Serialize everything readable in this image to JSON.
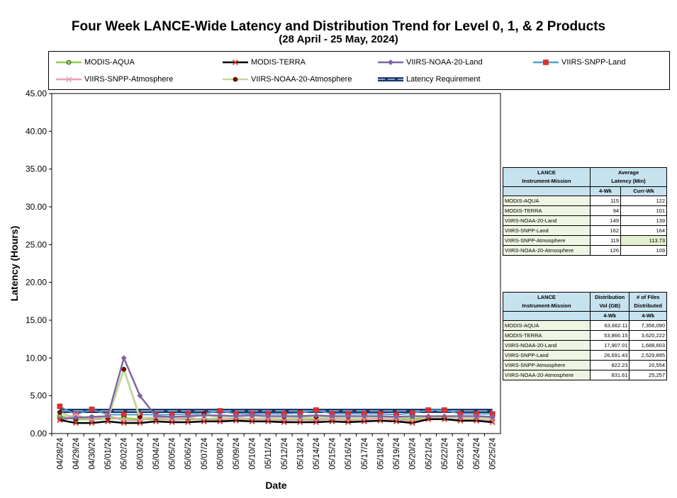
{
  "title": "Four Week LANCE-Wide Latency and Distribution Trend for Level 0, 1, & 2 Products",
  "subtitle": "(28  April   -  25  May,  2024)",
  "colors": {
    "modis_aqua": "#92d050",
    "modis_terra": "#000000",
    "viirs_noaa20_land": "#8064a2",
    "viirs_snpp_land": "#4f9fd6",
    "viirs_snpp_atmo": "#e6a2b4",
    "viirs_noaa20_atmo": "#c4d79b",
    "requirement": "#1f3864"
  },
  "legend": {
    "items": [
      {
        "label": "MODIS-AQUA",
        "marker": "circle"
      },
      {
        "label": "MODIS-TERRA",
        "marker": "x"
      },
      {
        "label": "VIIRS-NOAA-20-Land",
        "marker": "diamond"
      },
      {
        "label": "VIIRS-SNPP-Land",
        "marker": "square"
      },
      {
        "label": "VIIRS-SNPP-Atmosphere",
        "marker": "x"
      },
      {
        "label": "VIIRS-NOAA-20-Atmosphere",
        "marker": "circle"
      },
      {
        "label": "Latency Requirement",
        "marker": "none"
      }
    ]
  },
  "chart_data": {
    "type": "line",
    "title": "Four Week LANCE-Wide Latency and Distribution Trend for Level 0, 1, & 2 Products",
    "subtitle": "(28  April   -  25  May,  2024)",
    "xlabel": "Date",
    "ylabel": "Latency (Hours)",
    "ylim": [
      0,
      45
    ],
    "yticks": [
      "0.00",
      "5.00",
      "10.00",
      "15.00",
      "20.00",
      "25.00",
      "30.00",
      "35.00",
      "40.00",
      "45.00"
    ],
    "grid": false,
    "legend_position": "top",
    "categories": [
      "04/28/24",
      "04/29/24",
      "04/30/24",
      "05/01/24",
      "05/02/24",
      "05/03/24",
      "05/04/24",
      "05/05/24",
      "05/06/24",
      "05/07/24",
      "05/08/24",
      "05/09/24",
      "05/10/24",
      "05/11/24",
      "05/12/24",
      "05/13/24",
      "05/14/24",
      "05/15/24",
      "05/16/24",
      "05/17/24",
      "05/18/24",
      "05/19/24",
      "05/20/24",
      "05/21/24",
      "05/22/24",
      "05/23/24",
      "05/24/24",
      "05/25/24"
    ],
    "series": [
      {
        "name": "MODIS-AQUA",
        "values": [
          2.3,
          1.9,
          1.9,
          2.0,
          2.0,
          1.9,
          1.9,
          1.9,
          1.9,
          1.9,
          1.9,
          1.9,
          1.9,
          1.9,
          1.9,
          1.9,
          1.9,
          1.9,
          1.9,
          1.9,
          2.0,
          1.9,
          1.9,
          2.0,
          2.0,
          2.0,
          2.0,
          2.0
        ]
      },
      {
        "name": "MODIS-TERRA",
        "values": [
          1.8,
          1.4,
          1.4,
          1.6,
          1.4,
          1.4,
          1.6,
          1.5,
          1.5,
          1.6,
          1.6,
          1.7,
          1.6,
          1.6,
          1.5,
          1.5,
          1.5,
          1.6,
          1.5,
          1.6,
          1.7,
          1.6,
          1.4,
          1.9,
          1.9,
          1.7,
          1.7,
          1.5
        ]
      },
      {
        "name": "VIIRS-NOAA-20-Land",
        "values": [
          1.9,
          2.1,
          2.2,
          2.3,
          10.0,
          5.0,
          2.3,
          2.2,
          2.3,
          2.4,
          2.4,
          2.3,
          2.4,
          2.3,
          2.3,
          2.3,
          2.4,
          2.3,
          2.3,
          2.3,
          2.3,
          2.2,
          2.3,
          2.3,
          2.3,
          2.3,
          2.3,
          2.2
        ]
      },
      {
        "name": "VIIRS-SNPP-Land",
        "values": [
          3.6,
          2.5,
          3.2,
          2.5,
          2.5,
          2.5,
          2.5,
          2.5,
          2.6,
          2.6,
          3.0,
          2.6,
          2.6,
          2.6,
          2.6,
          2.7,
          3.1,
          2.6,
          2.6,
          2.6,
          2.6,
          2.5,
          2.7,
          3.1,
          3.1,
          2.6,
          2.6,
          2.6
        ]
      },
      {
        "name": "VIIRS-SNPP-Atmosphere",
        "values": [
          1.8,
          2.5,
          1.8,
          2.4,
          1.7,
          1.7,
          2.2,
          1.7,
          2.1,
          1.8,
          1.8,
          2.0,
          1.9,
          1.8,
          1.7,
          1.8,
          1.7,
          2.0,
          1.7,
          1.8,
          2.0,
          1.8,
          1.6,
          2.0,
          1.9,
          1.8,
          1.8,
          1.7
        ]
      },
      {
        "name": "VIIRS-NOAA-20-Atmosphere",
        "values": [
          2.8,
          2.0,
          2.2,
          2.0,
          8.5,
          2.1,
          2.1,
          2.0,
          2.1,
          2.6,
          2.1,
          2.0,
          2.0,
          2.0,
          2.0,
          2.1,
          2.1,
          2.1,
          2.0,
          2.0,
          2.1,
          2.0,
          2.3,
          2.1,
          2.1,
          2.0,
          2.0,
          2.0
        ]
      },
      {
        "name": "Latency Requirement",
        "values": [
          3,
          3,
          3,
          3,
          3,
          3,
          3,
          3,
          3,
          3,
          3,
          3,
          3,
          3,
          3,
          3,
          3,
          3,
          3,
          3,
          3,
          3,
          3,
          3,
          3,
          3,
          3,
          3
        ]
      }
    ]
  },
  "latency_table": {
    "h1": "LANCE Instrument-Mission",
    "h1a": "LANCE",
    "h1b": "Instrument-Mission",
    "h2a": "Average",
    "h2b": "Latency (Min)",
    "c1": "4-Wk",
    "c2": "Curr-Wk",
    "rows": [
      {
        "name": "MODIS-AQUA",
        "a": "115",
        "b": "122"
      },
      {
        "name": "MODIS-TERRA",
        "a": "94",
        "b": "101"
      },
      {
        "name": "VIIRS-NOAA-20-Land",
        "a": "149",
        "b": "139"
      },
      {
        "name": "VIIRS-SNPP-Land",
        "a": "162",
        "b": "164"
      },
      {
        "name": "VIIRS-SNPP-Atmosphere",
        "a": "119",
        "b": "113.73"
      },
      {
        "name": "VIIRS-NOAA-20-Atmosphere",
        "a": "126",
        "b": "109"
      }
    ]
  },
  "distribution_table": {
    "h1a": "LANCE",
    "h1b": "Instrument-Mission",
    "h2a": "Distribution",
    "h2b": "Vol (GB)",
    "h3a": "# of Files",
    "h3b": "Distributed",
    "c1": "4-Wk",
    "c2": "4-Wk",
    "rows": [
      {
        "name": "MODIS-AQUA",
        "a": "63,662.11",
        "b": "7,356,090"
      },
      {
        "name": "MODIS-TERRA",
        "a": "53,866.15",
        "b": "3,620,222"
      },
      {
        "name": "VIIRS-NOAA-20-Land",
        "a": "17,907.01",
        "b": "1,688,603"
      },
      {
        "name": "VIIRS-SNPP-Land",
        "a": "26,691.43",
        "b": "2,529,895"
      },
      {
        "name": "VIIRS-SNPP-Atmosphere",
        "a": "822.23",
        "b": "20,554"
      },
      {
        "name": "VIIRS-NOAA-20-Atmosphere",
        "a": "831.61",
        "b": "25,257"
      }
    ]
  }
}
